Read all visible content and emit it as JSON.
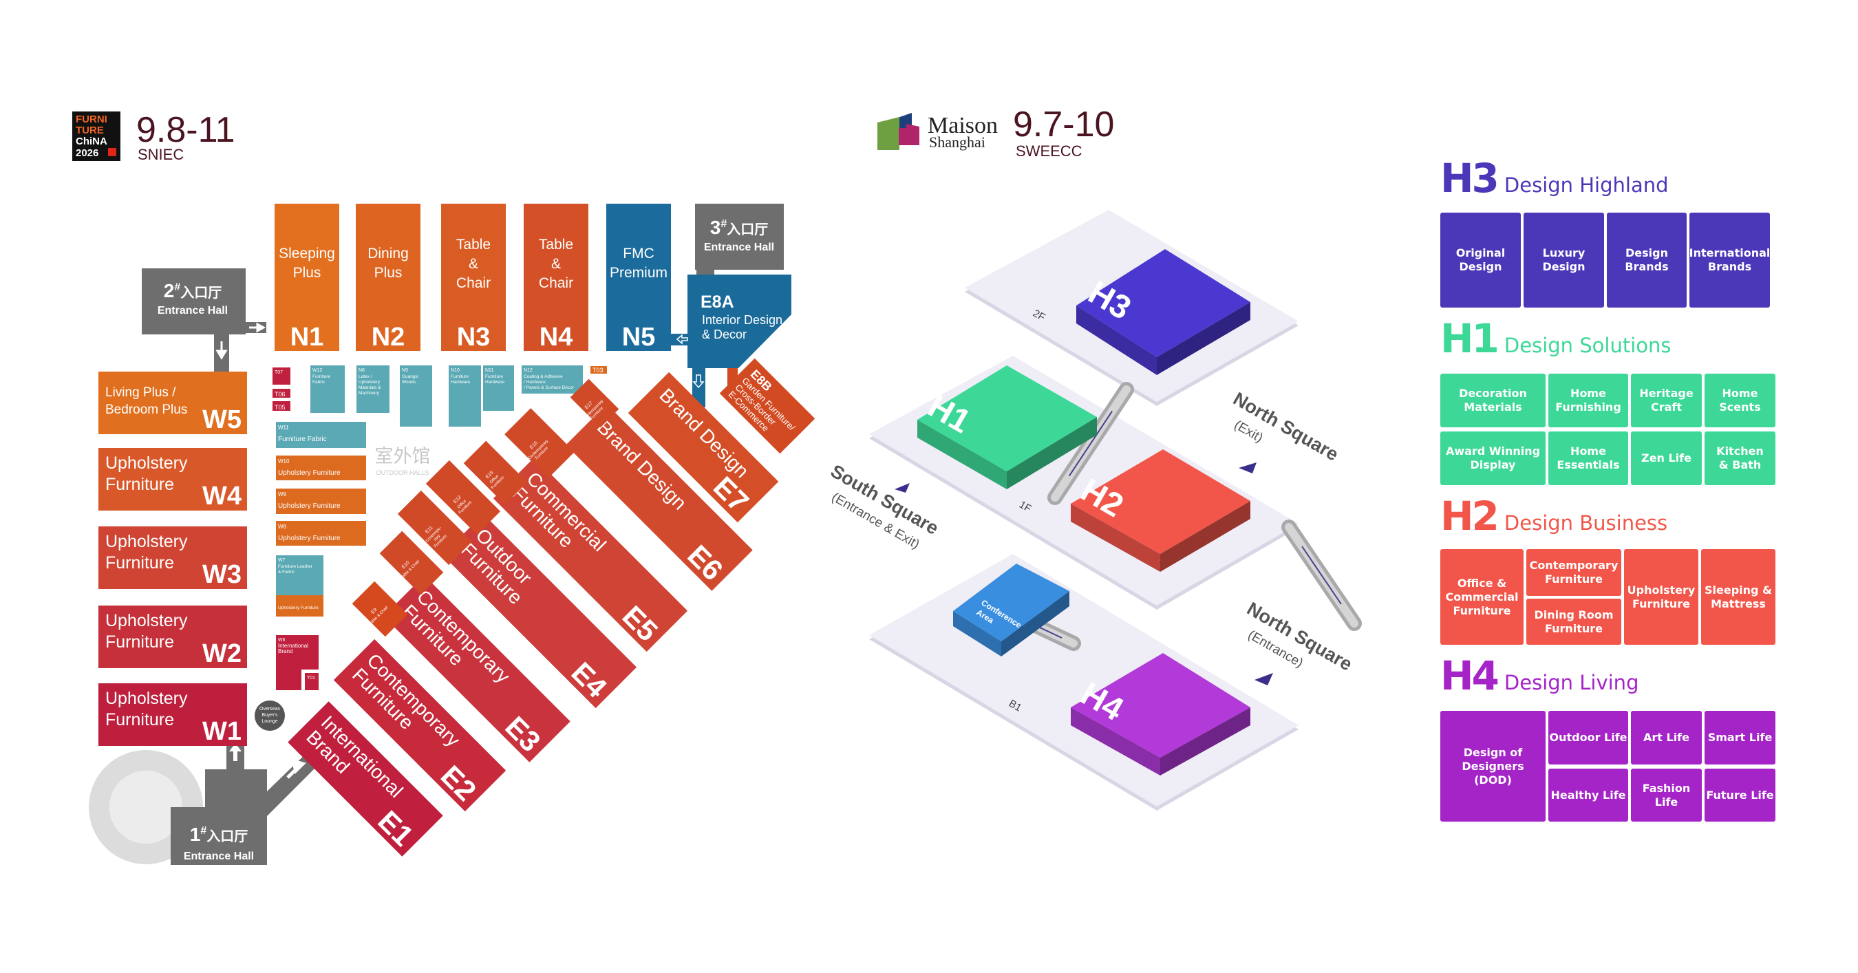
{
  "furniture_china": {
    "logo_lines": [
      "FURNI",
      "TURE",
      "ChiNA",
      "2026"
    ],
    "dates": "9.8-11",
    "venue": "SNIEC"
  },
  "maison_shanghai": {
    "logo_line1": "Maison",
    "logo_line2": "Shanghai",
    "dates": "9.7-10",
    "venue": "SWEECC"
  },
  "map": {
    "north_halls": [
      {
        "code": "N1",
        "label": [
          "Sleeping",
          "Plus"
        ],
        "color": "#e2701f"
      },
      {
        "code": "N2",
        "label": [
          "Dining",
          "Plus"
        ],
        "color": "#de6521"
      },
      {
        "code": "N3",
        "label": [
          "Table",
          "&",
          "Chair"
        ],
        "color": "#d95c24"
      },
      {
        "code": "N4",
        "label": [
          "Table",
          "&",
          "Chair"
        ],
        "color": "#d45026"
      },
      {
        "code": "N5",
        "label": [
          "FMC",
          "Premium"
        ],
        "color": "#1b6c9c"
      }
    ],
    "west_halls": [
      {
        "code": "W5",
        "label": [
          "Living Plus /",
          "Bedroom Plus"
        ],
        "color": "#e0701f"
      },
      {
        "code": "W4",
        "label": [
          "Upholstery",
          "Furniture"
        ],
        "color": "#d9582a"
      },
      {
        "code": "W3",
        "label": [
          "Upholstery",
          "Furniture"
        ],
        "color": "#cf4432"
      },
      {
        "code": "W2",
        "label": [
          "Upholstery",
          "Furniture"
        ],
        "color": "#c5303a"
      },
      {
        "code": "W1",
        "label": [
          "Upholstery",
          "Furniture"
        ],
        "color": "#bd1f3d"
      }
    ],
    "small_halls": [
      {
        "code": "T07",
        "label": []
      },
      {
        "code": "T06",
        "label": []
      },
      {
        "code": "T05",
        "label": []
      },
      {
        "code": "W12",
        "label": [
          "Furniture",
          "Fabric"
        ]
      },
      {
        "code": "N8",
        "label": [
          "Latex /",
          "Upholstery",
          "Materials &",
          "Machinery"
        ]
      },
      {
        "code": "N9",
        "label": [
          "Guangxi",
          "Woods"
        ]
      },
      {
        "code": "N10",
        "label": [
          "Furniture",
          "Hardware"
        ]
      },
      {
        "code": "N11",
        "label": [
          "Furniture",
          "Hardware"
        ]
      },
      {
        "code": "N12",
        "label": [
          "Coating & Adhesive",
          "/ Hardware",
          "/ Panels & Surface Décor"
        ]
      },
      {
        "code": "T03",
        "label": []
      },
      {
        "code": "W11",
        "label": [
          "Furniture  Fabric"
        ]
      },
      {
        "code": "W10",
        "label": [
          "Upholstery Furniture"
        ]
      },
      {
        "code": "W9",
        "label": [
          "Upholstery Furniture"
        ]
      },
      {
        "code": "W8",
        "label": [
          "Upholstery Furniture"
        ]
      },
      {
        "code": "W7",
        "label": [
          "Furniture Leather",
          "& Fabric"
        ]
      },
      {
        "code": "",
        "label": [
          "Upholstery Furniture"
        ]
      },
      {
        "code": "W6",
        "label": [
          "International",
          "Brand"
        ]
      },
      {
        "code": "T01",
        "label": []
      }
    ],
    "east_halls": [
      {
        "code": "E1",
        "label": [
          "International",
          "Brand"
        ],
        "color": "#c01f3d"
      },
      {
        "code": "E2",
        "label": [
          "Contemporary",
          "Furniture"
        ],
        "color": "#c62a3b"
      },
      {
        "code": "E3",
        "label": [
          "Contemporary",
          "Furniture"
        ],
        "color": "#c9333e"
      },
      {
        "code": "E4",
        "label": [
          "Outdoor",
          "Furniture"
        ],
        "color": "#cc3d3b"
      },
      {
        "code": "E5",
        "label": [
          "Commercial",
          "Furniture"
        ],
        "color": "#cf4435"
      },
      {
        "code": "E6",
        "label": [
          "Brand Design"
        ],
        "color": "#d24a2e"
      },
      {
        "code": "E7",
        "label": [
          "Brand Design"
        ],
        "color": "#d44e27"
      }
    ],
    "east_small_halls": [
      {
        "code": "E9",
        "label": [
          "Table & Chair"
        ]
      },
      {
        "code": "E10",
        "label": [
          "Table & Chair"
        ]
      },
      {
        "code": "E11",
        "label": [
          "Contempo-",
          "rary",
          "Furniture"
        ]
      },
      {
        "code": "E12",
        "label": [
          "Office",
          "Furniture"
        ]
      },
      {
        "code": "E15",
        "label": [
          "Office",
          "Furniture"
        ]
      },
      {
        "code": "E16",
        "label": [
          "Contemporary",
          "Furniture"
        ]
      },
      {
        "code": "E17",
        "label": [
          "Contemporary",
          "Furniture"
        ]
      }
    ],
    "e8a": {
      "code": "E8A",
      "label": [
        "Interior Design",
        "& Decor"
      ],
      "color": "#1a6a9a"
    },
    "e8b": {
      "code": "E8B",
      "label": [
        "Garden Furniture/",
        "Cross-Border",
        "E-Commerce"
      ],
      "color": "#d24a22"
    },
    "entrance_halls": [
      {
        "num": "1",
        "sup": "#",
        "cn": "入口厅",
        "en": "Entrance Hall"
      },
      {
        "num": "2",
        "sup": "#",
        "cn": "入口厅",
        "en": "Entrance Hall"
      },
      {
        "num": "3",
        "sup": "#",
        "cn": "入口厅",
        "en": "Entrance Hall"
      }
    ],
    "outdoor_halls": {
      "cn": "室外馆",
      "en": "OUTDOOR HALLS"
    },
    "lounge": [
      "Overseas",
      "Buyer's",
      "Lounge"
    ]
  },
  "iso": {
    "floors": [
      "2F",
      "1F",
      "B1"
    ],
    "halls": [
      "H3",
      "H1",
      "H2",
      "H4"
    ],
    "conference": [
      "Conference",
      "Area"
    ],
    "north_exit": {
      "name": "North Square",
      "note": "(Exit)"
    },
    "south": {
      "name": "South Square",
      "note": "(Entrance & Exit)"
    },
    "north_entrance": {
      "name": "North Square",
      "note": "(Entrance)"
    },
    "colors": {
      "H3": "#4b38d0",
      "H1": "#3dd897",
      "H2": "#f2564a",
      "H4": "#b13ad8",
      "conference": "#3a8ee0"
    }
  },
  "zones": [
    {
      "code": "H3",
      "title": "Design Highland",
      "color": "#4b38b8",
      "items": [
        "Original\nDesign",
        "Luxury\nDesign",
        "Design\nBrands",
        "International\nBrands"
      ]
    },
    {
      "code": "H1",
      "title": "Design Solutions",
      "color": "#3dd897",
      "items": [
        "Decoration\nMaterials",
        "Home\nFurnishing",
        "Heritage\nCraft",
        "Home\nScents",
        "Award Winning\nDisplay",
        "Home\nEssentials",
        "Zen Life",
        "Kitchen\n& Bath"
      ]
    },
    {
      "code": "H2",
      "title": "Design Business",
      "color": "#f2564a",
      "items": [
        "Office &\nCommercial\nFurniture",
        "Contemporary\nFurniture",
        "Dining Room\nFurniture",
        "Upholstery\nFurniture",
        "Sleeping &\nMattress"
      ]
    },
    {
      "code": "H4",
      "title": "Design Living",
      "color": "#a524c8",
      "items": [
        "Design of\nDesigners\n(DOD)",
        "Outdoor Life",
        "Art Life",
        "Smart Life",
        "Healthy Life",
        "Fashion Life",
        "Future Life"
      ]
    }
  ]
}
